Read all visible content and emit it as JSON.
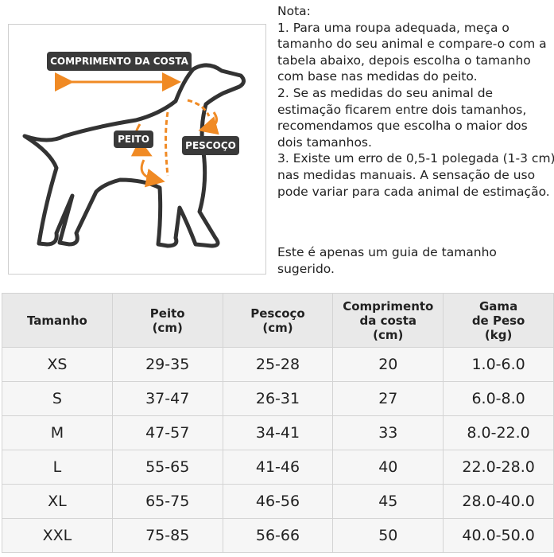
{
  "diagram": {
    "labels": {
      "back_length": "COMPRIMENTO DA COSTA",
      "chest": "PEITO",
      "neck": "PESCOÇO"
    }
  },
  "note": {
    "lines": [
      "Nota:",
      "1. Para uma roupa adequada, meça o",
      "tamanho do seu animal e compare-o com a",
      "tabela abaixo, depois escolha o tamanho",
      "com base nas medidas do peito.",
      "2. Se as medidas do seu animal de",
      "estimação ficarem entre dois tamanhos,",
      "recomendamos que escolha o maior dos",
      "dois tamanhos.",
      "3. Existe um erro de 0,5-1 polegada (1-3 cm)",
      "nas medidas manuais. A sensação de uso",
      "pode variar para cada animal de estimação."
    ],
    "guide": [
      "Este é apenas um guia de tamanho",
      "sugerido."
    ]
  },
  "table": {
    "header": [
      [
        "Tamanho"
      ],
      [
        "Peito",
        "(cm)"
      ],
      [
        "Pescoço",
        "(cm)"
      ],
      [
        "Comprimento",
        "da costa",
        "(cm)"
      ],
      [
        "Gama",
        "de Peso",
        "(kg)"
      ]
    ],
    "rows": [
      [
        "XS",
        "29-35",
        "25-28",
        "20",
        "1.0-6.0"
      ],
      [
        "S",
        "37-47",
        "26-31",
        "27",
        "6.0-8.0"
      ],
      [
        "M",
        "47-57",
        "34-41",
        "33",
        "8.0-22.0"
      ],
      [
        "L",
        "55-65",
        "41-46",
        "40",
        "22.0-28.0"
      ],
      [
        "XL",
        "65-75",
        "46-56",
        "45",
        "28.0-40.0"
      ],
      [
        "XXL",
        "75-85",
        "56-66",
        "50",
        "40.0-50.0"
      ]
    ]
  }
}
